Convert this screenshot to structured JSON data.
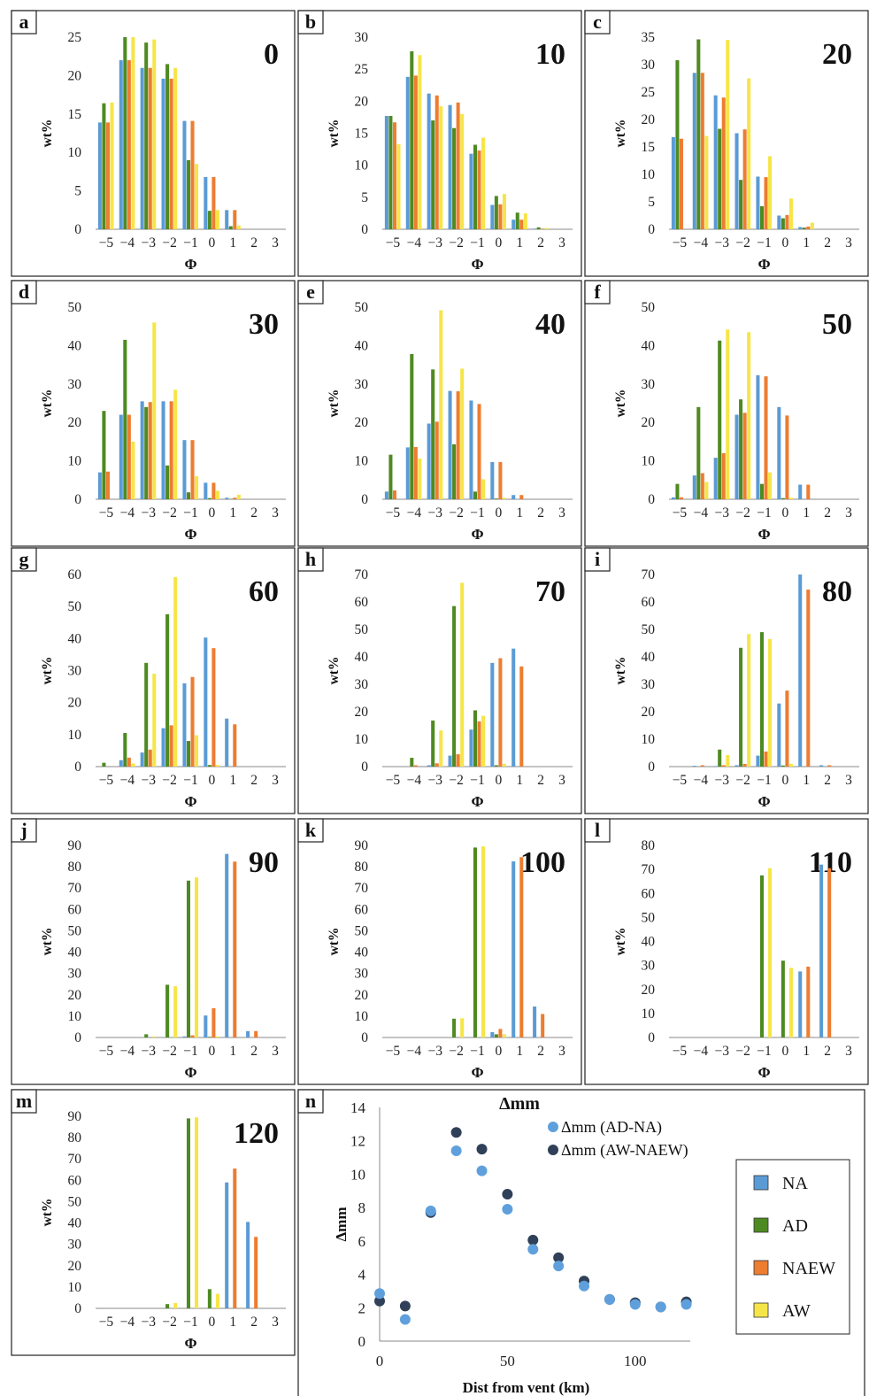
{
  "colors": {
    "NA": "#5b9bd5",
    "AD": "#4e8a22",
    "NAEW": "#ed7d31",
    "AW": "#f6e548",
    "dm_ADNA": "#5fa0dc",
    "dm_AWNAEW": "#2f4058"
  },
  "chart_data": [
    {
      "panel": "a",
      "type": "bar",
      "label": "0",
      "xlabel": "Φ",
      "ylabel": "wt%",
      "ylim": [
        0,
        25
      ],
      "yticks": [
        0,
        5,
        10,
        15,
        20,
        25
      ],
      "categories": [
        "-5",
        "-4",
        "-3",
        "-2",
        "-1",
        "0",
        "1"
      ],
      "series": [
        {
          "name": "NA",
          "values": [
            13.9,
            22,
            21,
            19.6,
            14.1,
            6.8,
            2.5
          ]
        },
        {
          "name": "AD",
          "values": [
            16.4,
            25,
            24.3,
            21.5,
            9,
            2.4,
            0.4
          ]
        },
        {
          "name": "NAEW",
          "values": [
            13.9,
            22,
            21,
            19.6,
            14.1,
            6.8,
            2.5
          ]
        },
        {
          "name": "AW",
          "values": [
            16.5,
            25,
            24.7,
            21,
            8.5,
            2.5,
            0.5
          ]
        }
      ]
    },
    {
      "panel": "b",
      "type": "bar",
      "label": "10",
      "xlabel": "Φ",
      "ylabel": "wt%",
      "ylim": [
        0,
        30
      ],
      "yticks": [
        0,
        5,
        10,
        15,
        20,
        25,
        30
      ],
      "categories": [
        "-5",
        "-4",
        "-3",
        "-2",
        "-1",
        "0",
        "1",
        "2"
      ],
      "series": [
        {
          "name": "NA",
          "values": [
            17.7,
            23.8,
            21.2,
            19.4,
            11.8,
            3.8,
            1.5,
            0.1
          ]
        },
        {
          "name": "AD",
          "values": [
            17.7,
            27.8,
            17,
            15.8,
            13.2,
            5.2,
            2.6,
            0.3
          ]
        },
        {
          "name": "NAEW",
          "values": [
            16.7,
            24,
            20.9,
            19.8,
            12.3,
            3.9,
            1.5,
            0.1
          ]
        },
        {
          "name": "AW",
          "values": [
            13.3,
            27.2,
            19.2,
            18,
            14.3,
            5.5,
            2.5,
            0.2
          ]
        }
      ]
    },
    {
      "panel": "c",
      "type": "bar",
      "label": "20",
      "xlabel": "Φ",
      "ylabel": "wt%",
      "ylim": [
        0,
        35
      ],
      "yticks": [
        0,
        5,
        10,
        15,
        20,
        25,
        30,
        35
      ],
      "categories": [
        "-5",
        "-4",
        "-3",
        "-2",
        "-1",
        "0",
        "1"
      ],
      "series": [
        {
          "name": "NA",
          "values": [
            16.8,
            28.5,
            24.4,
            17.5,
            9.6,
            2.5,
            0.4
          ]
        },
        {
          "name": "AD",
          "values": [
            30.8,
            34.6,
            18.3,
            9,
            4.2,
            2,
            0.3
          ]
        },
        {
          "name": "NAEW",
          "values": [
            16.5,
            28.5,
            24,
            18.2,
            9.5,
            2.6,
            0.5
          ]
        },
        {
          "name": "AW",
          "values": [
            0,
            17,
            34.5,
            27.5,
            13.3,
            5.6,
            1.2
          ]
        }
      ]
    },
    {
      "panel": "d",
      "type": "bar",
      "label": "30",
      "xlabel": "Φ",
      "ylabel": "wt%",
      "ylim": [
        0,
        50
      ],
      "yticks": [
        0,
        10,
        20,
        30,
        40,
        50
      ],
      "categories": [
        "-5",
        "-4",
        "-3",
        "-2",
        "-1",
        "0",
        "1"
      ],
      "series": [
        {
          "name": "NA",
          "values": [
            7,
            22,
            25.5,
            25.5,
            15.4,
            4.3,
            0.4
          ]
        },
        {
          "name": "AD",
          "values": [
            23,
            41.5,
            24,
            8.8,
            1.8,
            0.3,
            0.1
          ]
        },
        {
          "name": "NAEW",
          "values": [
            7.2,
            22,
            25.3,
            25.5,
            15.4,
            4.3,
            0.4
          ]
        },
        {
          "name": "AW",
          "values": [
            0,
            15,
            46,
            28.5,
            6,
            2.2,
            1.2
          ]
        }
      ]
    },
    {
      "panel": "e",
      "type": "bar",
      "label": "40",
      "xlabel": "Φ",
      "ylabel": "wt%",
      "ylim": [
        0,
        50
      ],
      "yticks": [
        0,
        10,
        20,
        30,
        40,
        50
      ],
      "categories": [
        "-5",
        "-4",
        "-3",
        "-2",
        "-1",
        "0",
        "1"
      ],
      "series": [
        {
          "name": "NA",
          "values": [
            2,
            13.5,
            19.7,
            28.2,
            25.7,
            9.7,
            1.1
          ]
        },
        {
          "name": "AD",
          "values": [
            11.6,
            37.8,
            33.8,
            14.3,
            2,
            0.2,
            0
          ]
        },
        {
          "name": "NAEW",
          "values": [
            2.3,
            13.6,
            20.2,
            28.1,
            24.8,
            9.7,
            1.1
          ]
        },
        {
          "name": "AW",
          "values": [
            0,
            10.6,
            49.2,
            34,
            5.2,
            0.4,
            0
          ]
        }
      ]
    },
    {
      "panel": "f",
      "type": "bar",
      "label": "50",
      "xlabel": "Φ",
      "ylabel": "wt%",
      "ylim": [
        0,
        50
      ],
      "yticks": [
        0,
        10,
        20,
        30,
        40,
        50
      ],
      "categories": [
        "-5",
        "-4",
        "-3",
        "-2",
        "-1",
        "0",
        "1"
      ],
      "series": [
        {
          "name": "NA",
          "values": [
            0.5,
            6.2,
            10.8,
            22,
            32.3,
            24,
            3.8
          ]
        },
        {
          "name": "AD",
          "values": [
            4,
            24,
            41.3,
            26,
            4,
            0.3,
            0
          ]
        },
        {
          "name": "NAEW",
          "values": [
            0.5,
            6.8,
            12,
            22.5,
            32,
            21.8,
            3.8
          ]
        },
        {
          "name": "AW",
          "values": [
            0,
            4.5,
            44.2,
            43.5,
            7,
            0.4,
            0
          ]
        }
      ]
    },
    {
      "panel": "g",
      "type": "bar",
      "label": "60",
      "xlabel": "Φ",
      "ylabel": "wt%",
      "ylim": [
        0,
        60
      ],
      "yticks": [
        0,
        10,
        20,
        30,
        40,
        50,
        60
      ],
      "categories": [
        "-5",
        "-4",
        "-3",
        "-2",
        "-1",
        "0",
        "1"
      ],
      "series": [
        {
          "name": "NA",
          "values": [
            0,
            2,
            4.4,
            12,
            26,
            40.3,
            15
          ]
        },
        {
          "name": "AD",
          "values": [
            1.2,
            10.5,
            32.4,
            47.6,
            8,
            0.5,
            0
          ]
        },
        {
          "name": "NAEW",
          "values": [
            0,
            2.8,
            5.3,
            12.9,
            28,
            37,
            13.2
          ]
        },
        {
          "name": "AW",
          "values": [
            0,
            1,
            29,
            59.2,
            9.8,
            0.5,
            0
          ]
        }
      ]
    },
    {
      "panel": "h",
      "type": "bar",
      "label": "70",
      "xlabel": "Φ",
      "ylabel": "wt%",
      "ylim": [
        0,
        70
      ],
      "yticks": [
        0,
        10,
        20,
        30,
        40,
        50,
        60,
        70
      ],
      "categories": [
        "-5",
        "-4",
        "-3",
        "-2",
        "-1",
        "0",
        "1"
      ],
      "series": [
        {
          "name": "NA",
          "values": [
            0,
            0,
            0.5,
            4,
            13.5,
            37.8,
            43
          ]
        },
        {
          "name": "AD",
          "values": [
            0,
            3.2,
            16.8,
            58.5,
            20.5,
            0.5,
            0
          ]
        },
        {
          "name": "NAEW",
          "values": [
            0,
            0.5,
            1.2,
            4.5,
            16.5,
            39.5,
            36.5
          ]
        },
        {
          "name": "AW",
          "values": [
            0,
            0,
            13.2,
            67,
            18.5,
            1,
            0
          ]
        }
      ]
    },
    {
      "panel": "i",
      "type": "bar",
      "label": "80",
      "xlabel": "Φ",
      "ylabel": "wt%",
      "ylim": [
        0,
        70
      ],
      "yticks": [
        0,
        10,
        20,
        30,
        40,
        50,
        60,
        70
      ],
      "categories": [
        "-5",
        "-4",
        "-3",
        "-2",
        "-1",
        "0",
        "1",
        "2"
      ],
      "series": [
        {
          "name": "NA",
          "values": [
            0,
            0.3,
            0.2,
            0.5,
            4,
            23,
            70,
            0.5
          ]
        },
        {
          "name": "AD",
          "values": [
            0,
            0,
            6.2,
            43.3,
            49,
            0.4,
            0,
            0
          ]
        },
        {
          "name": "NAEW",
          "values": [
            0,
            0.5,
            0.5,
            1,
            5.5,
            27.7,
            64.5,
            0.5
          ]
        },
        {
          "name": "AW",
          "values": [
            0,
            0,
            4.2,
            48.3,
            46.5,
            1,
            0,
            0
          ]
        }
      ]
    },
    {
      "panel": "j",
      "type": "bar",
      "label": "90",
      "xlabel": "Φ",
      "ylabel": "wt%",
      "ylim": [
        0,
        90
      ],
      "yticks": [
        0,
        10,
        20,
        30,
        40,
        50,
        60,
        70,
        80,
        90
      ],
      "categories": [
        "-5",
        "-4",
        "-3",
        "-2",
        "-1",
        "0",
        "1",
        "2"
      ],
      "series": [
        {
          "name": "NA",
          "values": [
            0,
            0,
            0,
            0,
            0.5,
            10.3,
            86,
            3
          ]
        },
        {
          "name": "AD",
          "values": [
            0,
            0,
            1.5,
            24.7,
            73.5,
            0.3,
            0,
            0
          ]
        },
        {
          "name": "NAEW",
          "values": [
            0,
            0,
            0,
            0,
            1,
            13.7,
            82.4,
            3
          ]
        },
        {
          "name": "AW",
          "values": [
            0,
            0,
            0.5,
            24,
            75,
            0.5,
            0,
            0
          ]
        }
      ]
    },
    {
      "panel": "k",
      "type": "bar",
      "label": "100",
      "xlabel": "Φ",
      "ylabel": "wt%",
      "ylim": [
        0,
        90
      ],
      "yticks": [
        0,
        10,
        20,
        30,
        40,
        50,
        60,
        70,
        80,
        90
      ],
      "categories": [
        "-5",
        "-4",
        "-3",
        "-2",
        "-1",
        "0",
        "1",
        "2"
      ],
      "series": [
        {
          "name": "NA",
          "values": [
            0,
            0,
            0,
            0,
            0,
            2.5,
            82.5,
            14.5
          ]
        },
        {
          "name": "AD",
          "values": [
            0,
            0,
            0,
            8.8,
            89,
            1.5,
            0,
            0
          ]
        },
        {
          "name": "NAEW",
          "values": [
            0,
            0,
            0,
            0,
            0,
            4,
            84.5,
            11
          ]
        },
        {
          "name": "AW",
          "values": [
            0,
            0,
            0,
            9,
            89.5,
            1.5,
            0,
            0
          ]
        }
      ]
    },
    {
      "panel": "l",
      "type": "bar",
      "label": "110",
      "xlabel": "Φ",
      "ylabel": "wt%",
      "ylim": [
        0,
        80
      ],
      "yticks": [
        0,
        10,
        20,
        30,
        40,
        50,
        60,
        70,
        80
      ],
      "categories": [
        "-5",
        "-4",
        "-3",
        "-2",
        "-1",
        "0",
        "1",
        "2"
      ],
      "series": [
        {
          "name": "NA",
          "values": [
            0,
            0,
            0,
            0,
            0,
            0,
            27.5,
            72
          ]
        },
        {
          "name": "AD",
          "values": [
            0,
            0,
            0,
            0,
            67.5,
            32,
            0,
            0
          ]
        },
        {
          "name": "NAEW",
          "values": [
            0,
            0,
            0,
            0,
            0,
            0,
            29.5,
            70.5
          ]
        },
        {
          "name": "AW",
          "values": [
            0,
            0,
            0,
            0,
            70.5,
            29,
            0,
            0
          ]
        }
      ]
    },
    {
      "panel": "m",
      "type": "bar",
      "label": "120",
      "xlabel": "Φ",
      "ylabel": "wt%",
      "ylim": [
        0,
        90
      ],
      "yticks": [
        0,
        10,
        20,
        30,
        40,
        50,
        60,
        70,
        80,
        90
      ],
      "categories": [
        "-5",
        "-4",
        "-3",
        "-2",
        "-1",
        "0",
        "1",
        "2"
      ],
      "series": [
        {
          "name": "NA",
          "values": [
            0,
            0,
            0,
            0,
            0,
            0,
            59,
            40.5
          ]
        },
        {
          "name": "AD",
          "values": [
            0,
            0,
            0,
            2,
            89,
            9,
            0,
            0
          ]
        },
        {
          "name": "NAEW",
          "values": [
            0,
            0,
            0,
            0,
            0,
            0,
            65.5,
            33.5
          ]
        },
        {
          "name": "AW",
          "values": [
            0,
            0,
            0,
            2.5,
            89.5,
            6.8,
            0,
            0
          ]
        }
      ]
    },
    {
      "panel": "n",
      "type": "scatter",
      "title": "Δmm",
      "xlabel": "Dist from vent (km)",
      "ylabel": "Δmm",
      "xlim": [
        0,
        125
      ],
      "ylim": [
        0,
        14
      ],
      "xticks": [
        0,
        50,
        100
      ],
      "yticks": [
        0,
        2,
        4,
        6,
        8,
        10,
        12,
        14
      ],
      "series": [
        {
          "name": "Δmm (AD-NA)",
          "x": [
            0,
            10,
            20,
            30,
            40,
            50,
            60,
            70,
            80,
            90,
            100,
            110,
            120
          ],
          "y": [
            2.85,
            1.3,
            7.8,
            11.4,
            10.2,
            7.9,
            5.5,
            4.5,
            3.3,
            2.5,
            2.2,
            2.05,
            2.2
          ]
        },
        {
          "name": "Δmm (AW-NAEW)",
          "x": [
            0,
            10,
            20,
            30,
            40,
            50,
            60,
            70,
            80,
            90,
            100,
            110,
            120
          ],
          "y": [
            2.4,
            2.1,
            7.7,
            12.5,
            11.5,
            8.8,
            6.05,
            5,
            3.6,
            2.5,
            2.3,
            2.05,
            2.35
          ]
        }
      ]
    }
  ],
  "legend": [
    "NA",
    "AD",
    "NAEW",
    "AW"
  ],
  "xtick_labels": [
    "−5",
    "−4",
    "−3",
    "−2",
    "−1",
    "0",
    "1",
    "2",
    "3"
  ]
}
